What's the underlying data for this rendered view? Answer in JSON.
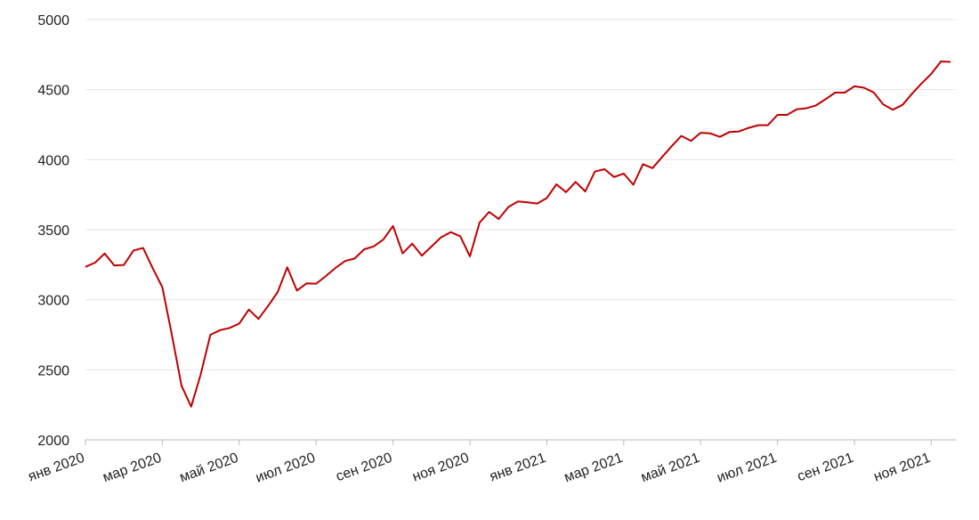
{
  "chart_data": {
    "type": "line",
    "categories": [
      "янв 2020",
      null,
      null,
      null,
      null,
      null,
      null,
      null,
      "мар 2020",
      null,
      null,
      null,
      null,
      null,
      null,
      null,
      "май 2020",
      null,
      null,
      null,
      null,
      null,
      null,
      null,
      "июл 2020",
      null,
      null,
      null,
      null,
      null,
      null,
      null,
      "сен 2020",
      null,
      null,
      null,
      null,
      null,
      null,
      null,
      "ноя 2020",
      null,
      null,
      null,
      null,
      null,
      null,
      null,
      "янв 2021",
      null,
      null,
      null,
      null,
      null,
      null,
      null,
      "мар 2021",
      null,
      null,
      null,
      null,
      null,
      null,
      null,
      "май 2021",
      null,
      null,
      null,
      null,
      null,
      null,
      null,
      "июл 2021",
      null,
      null,
      null,
      null,
      null,
      null,
      null,
      "сен 2021",
      null,
      null,
      null,
      null,
      null,
      null,
      null,
      "ноя 2021",
      null,
      null
    ],
    "values": [
      3235,
      3265,
      3330,
      3245,
      3248,
      3352,
      3370,
      3225,
      3090,
      2746,
      2386,
      2237,
      2470,
      2750,
      2783,
      2799,
      2830,
      2930,
      2863,
      2955,
      3055,
      3232,
      3066,
      3117,
      3115,
      3169,
      3227,
      3276,
      3294,
      3360,
      3381,
      3431,
      3527,
      3331,
      3401,
      3315,
      3380,
      3446,
      3483,
      3453,
      3310,
      3550,
      3627,
      3577,
      3662,
      3702,
      3695,
      3687,
      3726,
      3824,
      3768,
      3841,
      3773,
      3915,
      3932,
      3876,
      3901,
      3821,
      3968,
      3940,
      4019,
      4097,
      4170,
      4134,
      4192,
      4188,
      4163,
      4197,
      4202,
      4227,
      4246,
      4246,
      4320,
      4320,
      4360,
      4367,
      4387,
      4432,
      4479,
      4479,
      4524,
      4514,
      4480,
      4395,
      4357,
      4391,
      4471,
      4545,
      4613,
      4701,
      4698
    ],
    "color": "#bf0000",
    "ylim": [
      2000,
      5000
    ],
    "yticks": [
      2000,
      2500,
      3000,
      3500,
      4000,
      4500,
      5000
    ],
    "grid": true
  }
}
